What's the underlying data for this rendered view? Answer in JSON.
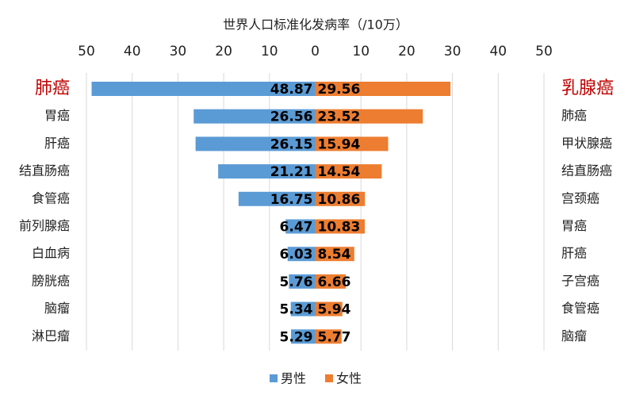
{
  "chart_data": {
    "type": "butterfly",
    "title": "世界人口标准化发病率（/10万）",
    "categories": [
      "肺癌",
      "胃癌",
      "肝癌",
      "结直肠癌",
      "食管癌",
      "前列腺癌",
      "白血病",
      "膀胱癌",
      "脑瘤",
      "淋巴瘤"
    ],
    "categories_right": [
      "乳腺癌",
      "肺癌",
      "甲状腺癌",
      "结直肠癌",
      "宫颈癌",
      "胃癌",
      "肝癌",
      "子宫癌",
      "食管癌",
      "脑瘤"
    ],
    "series": [
      {
        "name": "男性",
        "color": "#5b9bd5",
        "values": [
          48.87,
          26.56,
          26.15,
          21.21,
          16.75,
          6.47,
          6.03,
          5.76,
          5.34,
          5.29
        ]
      },
      {
        "name": "女性",
        "color": "#ed7d31",
        "values": [
          29.56,
          23.52,
          15.94,
          14.54,
          10.86,
          10.83,
          8.54,
          6.66,
          5.94,
          5.77
        ]
      }
    ],
    "xlim": [
      -50,
      50
    ],
    "xticks": [
      {
        "value": -50,
        "label": "50"
      },
      {
        "value": -40,
        "label": "40"
      },
      {
        "value": -30,
        "label": "30"
      },
      {
        "value": -20,
        "label": "20"
      },
      {
        "value": -10,
        "label": "10"
      },
      0,
      10,
      20,
      30,
      40,
      50
    ],
    "grid": true,
    "legend": "bottom"
  }
}
